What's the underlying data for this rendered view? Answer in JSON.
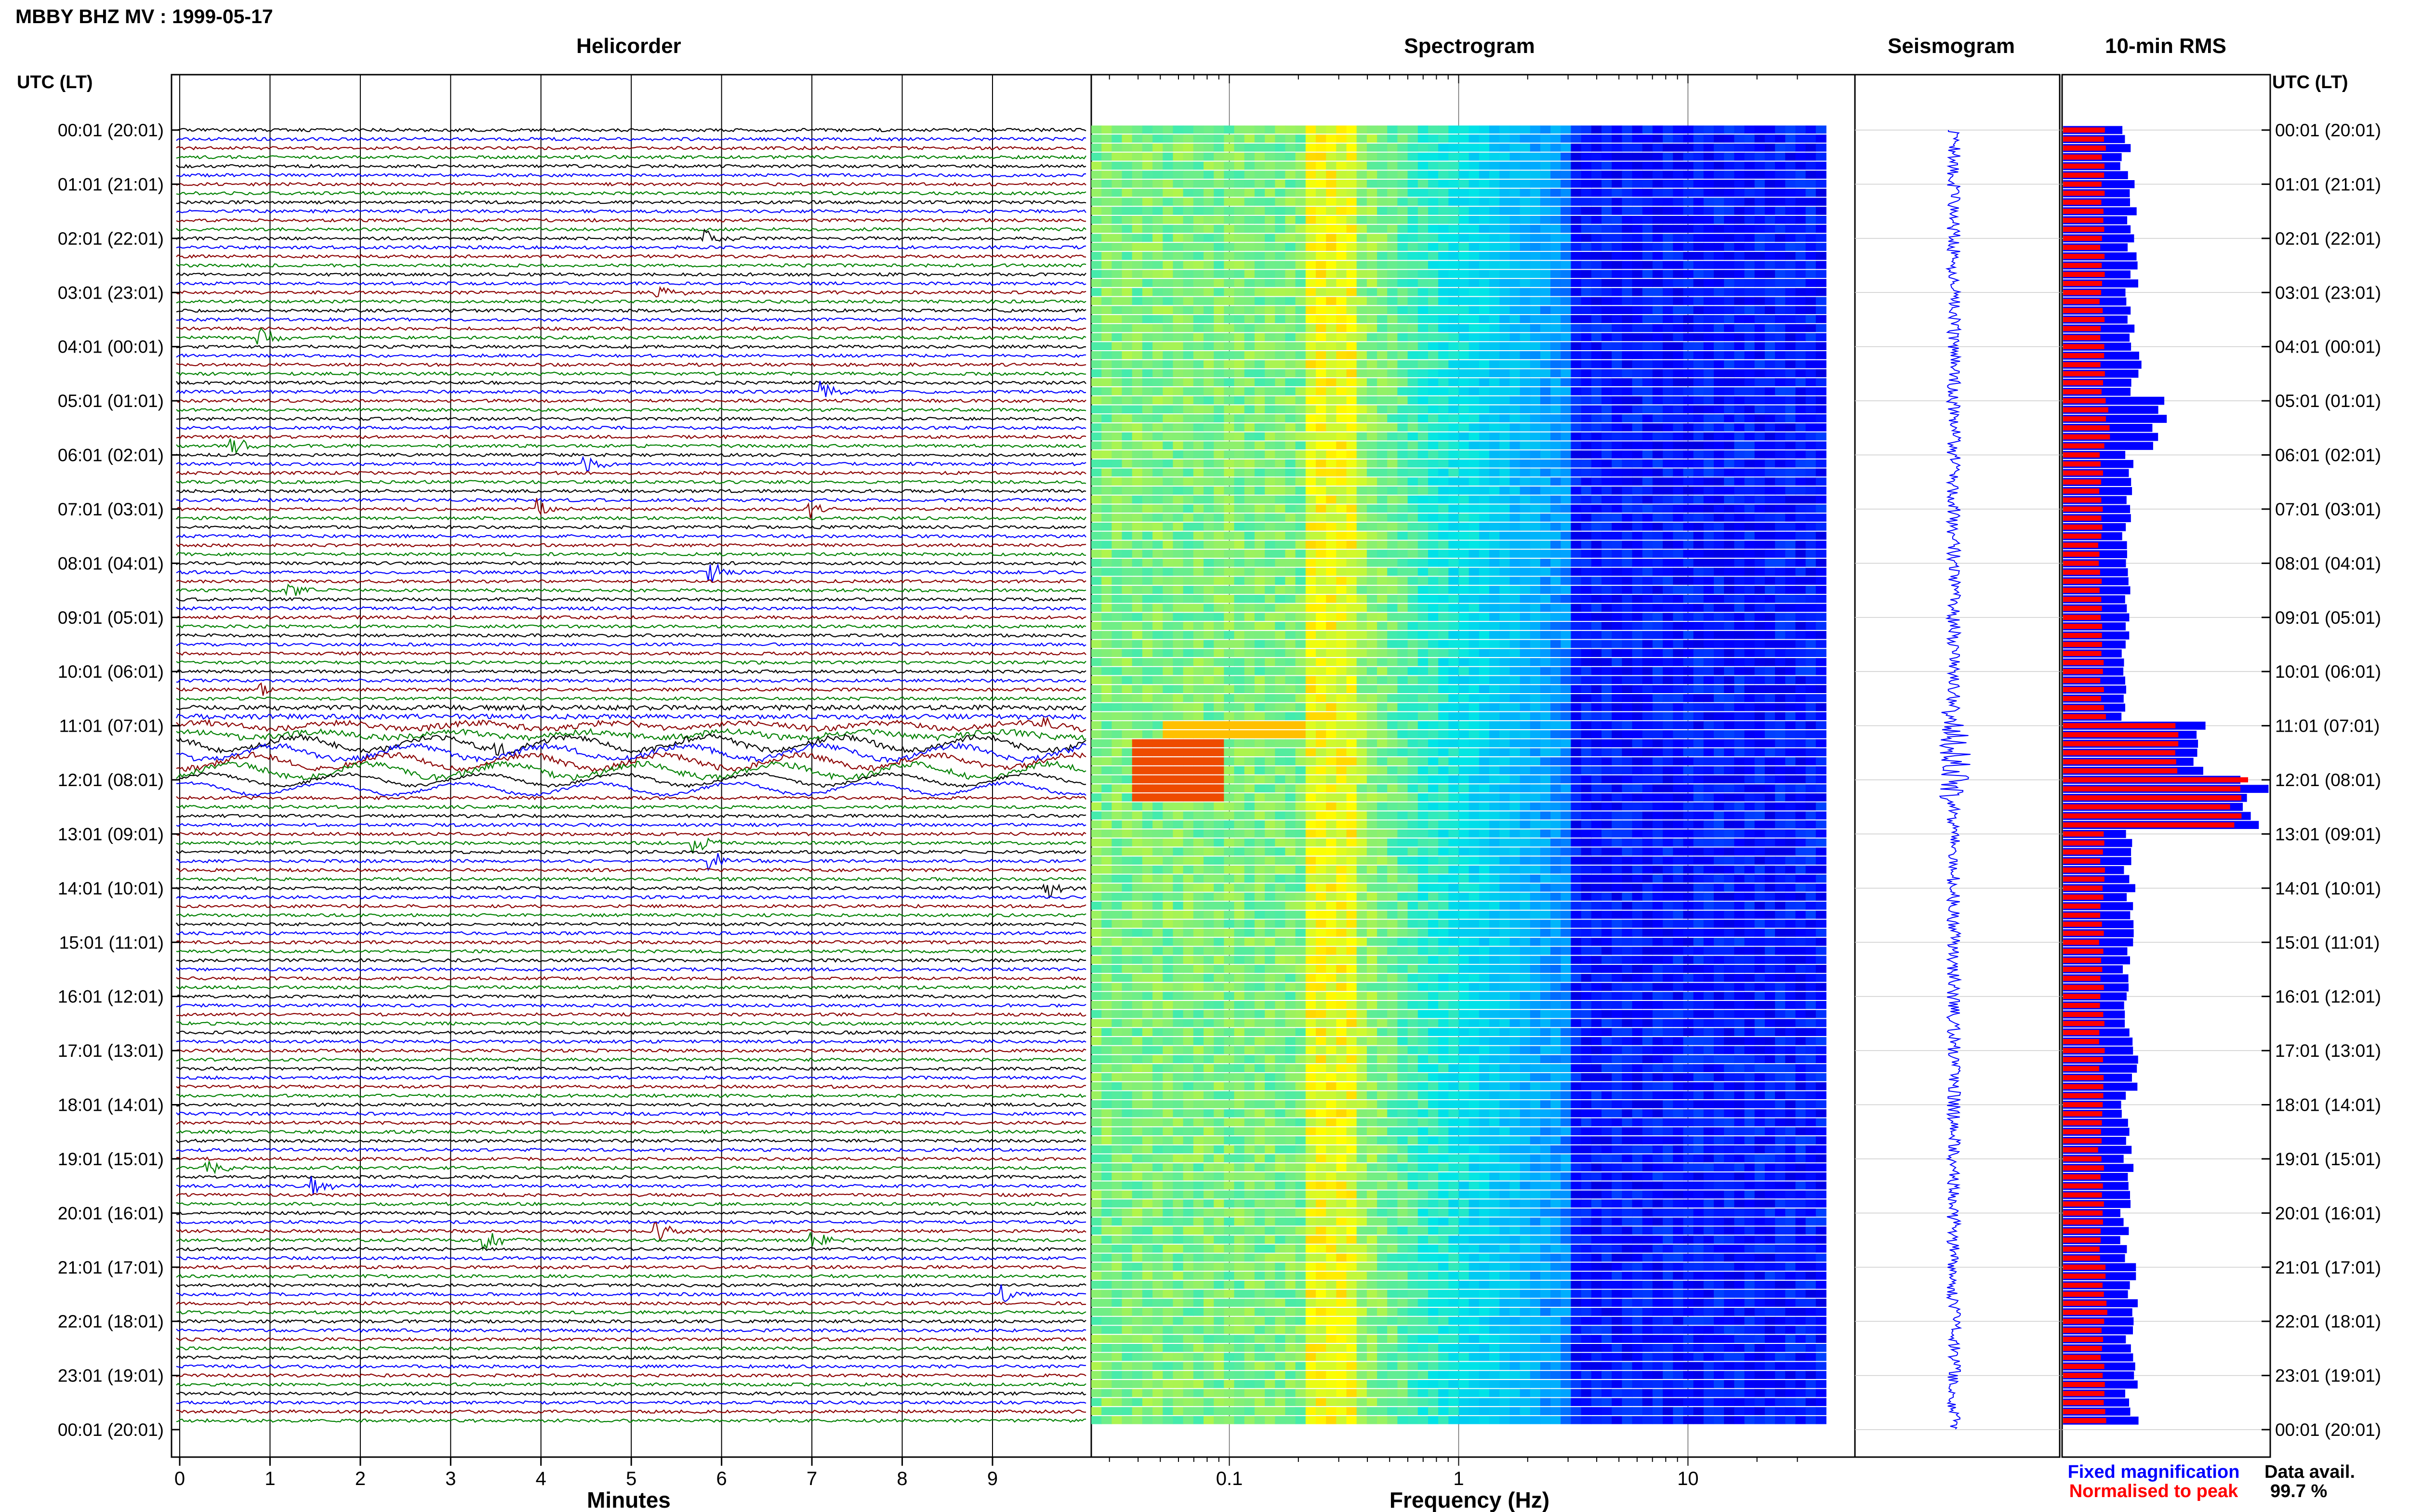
{
  "title": "MBBY BHZ MV : 1999-05-17",
  "panels": {
    "helicorder": "Helicorder",
    "spectrogram": "Spectrogram",
    "seismogram": "Seismogram",
    "rms": "10-min RMS"
  },
  "axis": {
    "time_header_left": "UTC (LT)",
    "time_header_right": "UTC (LT)",
    "helicorder_xlabel": "Minutes",
    "spectrogram_xlabel": "Frequency (Hz)"
  },
  "legend": {
    "fixed": "Fixed magnification",
    "normalised": "Normalised to peak",
    "fixed_color": "#0000ff",
    "normalised_color": "#ff0000"
  },
  "data_avail": {
    "label": "Data avail.",
    "value": "99.7 %"
  },
  "colors": {
    "trace_cycle": [
      "#000000",
      "#0000ff",
      "#8b0000",
      "#008000"
    ],
    "grid": "#000000",
    "rms_fixed": "#0000ff",
    "rms_normalised": "#ff0000"
  },
  "chart_data": {
    "type": "heatmap",
    "time_labels": [
      "00:01 (20:01)",
      "01:01 (21:01)",
      "02:01 (22:01)",
      "03:01 (23:01)",
      "04:01 (00:01)",
      "05:01 (01:01)",
      "06:01 (02:01)",
      "07:01 (03:01)",
      "08:01 (04:01)",
      "09:01 (05:01)",
      "10:01 (06:01)",
      "11:01 (07:01)",
      "12:01 (08:01)",
      "13:01 (09:01)",
      "14:01 (10:01)",
      "15:01 (11:01)",
      "16:01 (12:01)",
      "17:01 (13:01)",
      "18:01 (14:01)",
      "19:01 (15:01)",
      "20:01 (16:01)",
      "21:01 (17:01)",
      "22:01 (18:01)",
      "23:01 (19:01)",
      "00:01 (20:01)"
    ],
    "minute_ticks": [
      "0",
      "1",
      "2",
      "3",
      "4",
      "5",
      "6",
      "7",
      "8",
      "9"
    ],
    "frequency_ticks": [
      "0.1",
      "1",
      "10"
    ],
    "frequency_range_hz": [
      0.025,
      40
    ],
    "frequency_scale": "log",
    "rows": 144,
    "row_minutes": 10,
    "rms_fixed_hourly": [
      0.55,
      0.6,
      0.6,
      0.58,
      0.62,
      0.85,
      0.58,
      0.55,
      0.55,
      0.54,
      0.55,
      1.2,
      1.7,
      0.57,
      0.6,
      0.56,
      0.57,
      0.6,
      0.55,
      0.56,
      0.54,
      0.62,
      0.58,
      0.6
    ],
    "rms_normalised_hourly": [
      0.35,
      0.35,
      0.35,
      0.34,
      0.35,
      0.38,
      0.33,
      0.33,
      0.33,
      0.33,
      0.35,
      0.95,
      1.5,
      0.34,
      0.35,
      0.34,
      0.34,
      0.34,
      0.33,
      0.33,
      0.33,
      0.36,
      0.34,
      0.35
    ],
    "events": [
      {
        "minute": 5.8,
        "row": 12
      },
      {
        "minute": 5.3,
        "row": 18
      },
      {
        "minute": 0.9,
        "row": 23
      },
      {
        "minute": 7.1,
        "row": 29
      },
      {
        "minute": 0.6,
        "row": 35
      },
      {
        "minute": 4.5,
        "row": 37
      },
      {
        "minute": 4.0,
        "row": 42
      },
      {
        "minute": 7.0,
        "row": 42
      },
      {
        "minute": 5.9,
        "row": 49
      },
      {
        "minute": 1.2,
        "row": 51
      },
      {
        "minute": 0.9,
        "row": 62
      },
      {
        "minute": 9.6,
        "row": 66
      },
      {
        "minute": 3.5,
        "row": 68
      },
      {
        "minute": 5.7,
        "row": 79
      },
      {
        "minute": 5.9,
        "row": 81
      },
      {
        "minute": 9.6,
        "row": 84
      },
      {
        "minute": 0.3,
        "row": 115
      },
      {
        "minute": 1.5,
        "row": 117
      },
      {
        "minute": 5.3,
        "row": 122
      },
      {
        "minute": 3.4,
        "row": 123
      },
      {
        "minute": 7.0,
        "row": 123
      },
      {
        "minute": 9.1,
        "row": 129
      }
    ]
  }
}
